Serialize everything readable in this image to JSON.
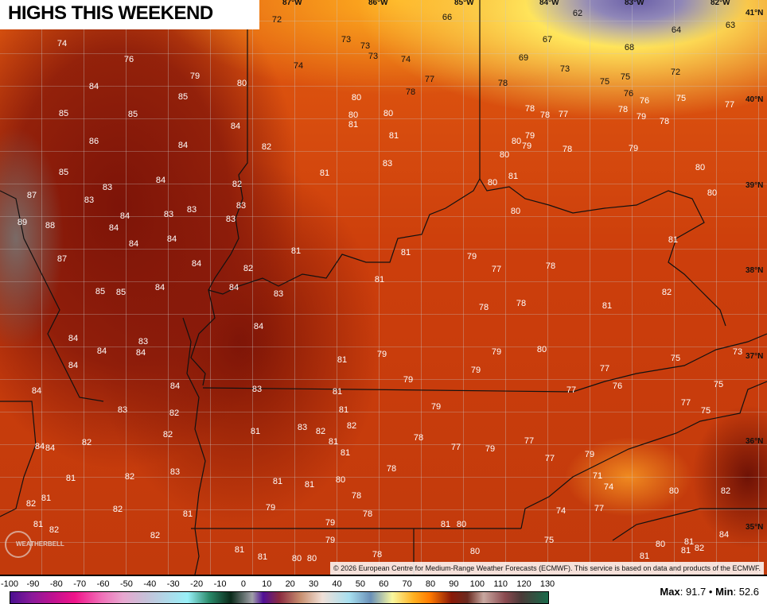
{
  "title": "HIGHS THIS WEEKEND",
  "copyright": "© 2026 European Centre for Medium-Range Weather Forecasts (ECMWF). This service is based on data and products of the ECMWF.",
  "logo_text": "WEATHERBELL",
  "longitudes": [
    "87°W",
    "86°W",
    "85°W",
    "84°W",
    "83°W",
    "82°W"
  ],
  "latitudes": [
    "41°N",
    "40°N",
    "39°N",
    "38°N",
    "37°N",
    "36°N",
    "35°N"
  ],
  "values": [
    74,
    72,
    66,
    62,
    64,
    63,
    76,
    73,
    73,
    73,
    74,
    74,
    67,
    69,
    68,
    73,
    72,
    79,
    80,
    77,
    84,
    78,
    78,
    75,
    75,
    85,
    80,
    76,
    76,
    75,
    77,
    85,
    85,
    80,
    80,
    78,
    78,
    77,
    78,
    79,
    78,
    84,
    81,
    86,
    84,
    81,
    79,
    80,
    79,
    78,
    79,
    82,
    80,
    83,
    85,
    81,
    80,
    84,
    82,
    81,
    80,
    83,
    87,
    83,
    80,
    83,
    83,
    83,
    84,
    83,
    80,
    89,
    88,
    84,
    84,
    84,
    81,
    81,
    81,
    87,
    79,
    84,
    82,
    77,
    78,
    81,
    84,
    84,
    85,
    85,
    83,
    82,
    81,
    78,
    78,
    84,
    84,
    83,
    84,
    84,
    80,
    79,
    79,
    81,
    73,
    75,
    84,
    79,
    77,
    79,
    84,
    75,
    84,
    83,
    81,
    77,
    76,
    83,
    79,
    77,
    75,
    81,
    82,
    83,
    82,
    82,
    81,
    82,
    78,
    77,
    84,
    84,
    82,
    81,
    77,
    79,
    81,
    77,
    79,
    83,
    82,
    81,
    78,
    71,
    81,
    81,
    80,
    74,
    80,
    82,
    81,
    82,
    78,
    82,
    79,
    81,
    74,
    77,
    78,
    81,
    82,
    79,
    81,
    80,
    82,
    79,
    75,
    81,
    80,
    81,
    78,
    80,
    80,
    81,
    80,
    81,
    82,
    84,
    81
  ],
  "colorbar": {
    "ticks": [
      "-100",
      "-90",
      "-80",
      "-70",
      "-60",
      "-50",
      "-40",
      "-30",
      "-20",
      "-10",
      "0",
      "10",
      "20",
      "30",
      "40",
      "50",
      "60",
      "70",
      "80",
      "90",
      "100",
      "110",
      "120",
      "130"
    ]
  },
  "stats": {
    "max_label": "Max",
    "max": "91.7",
    "separator": "•",
    "min_label": "Min",
    "min": "52.6"
  }
}
